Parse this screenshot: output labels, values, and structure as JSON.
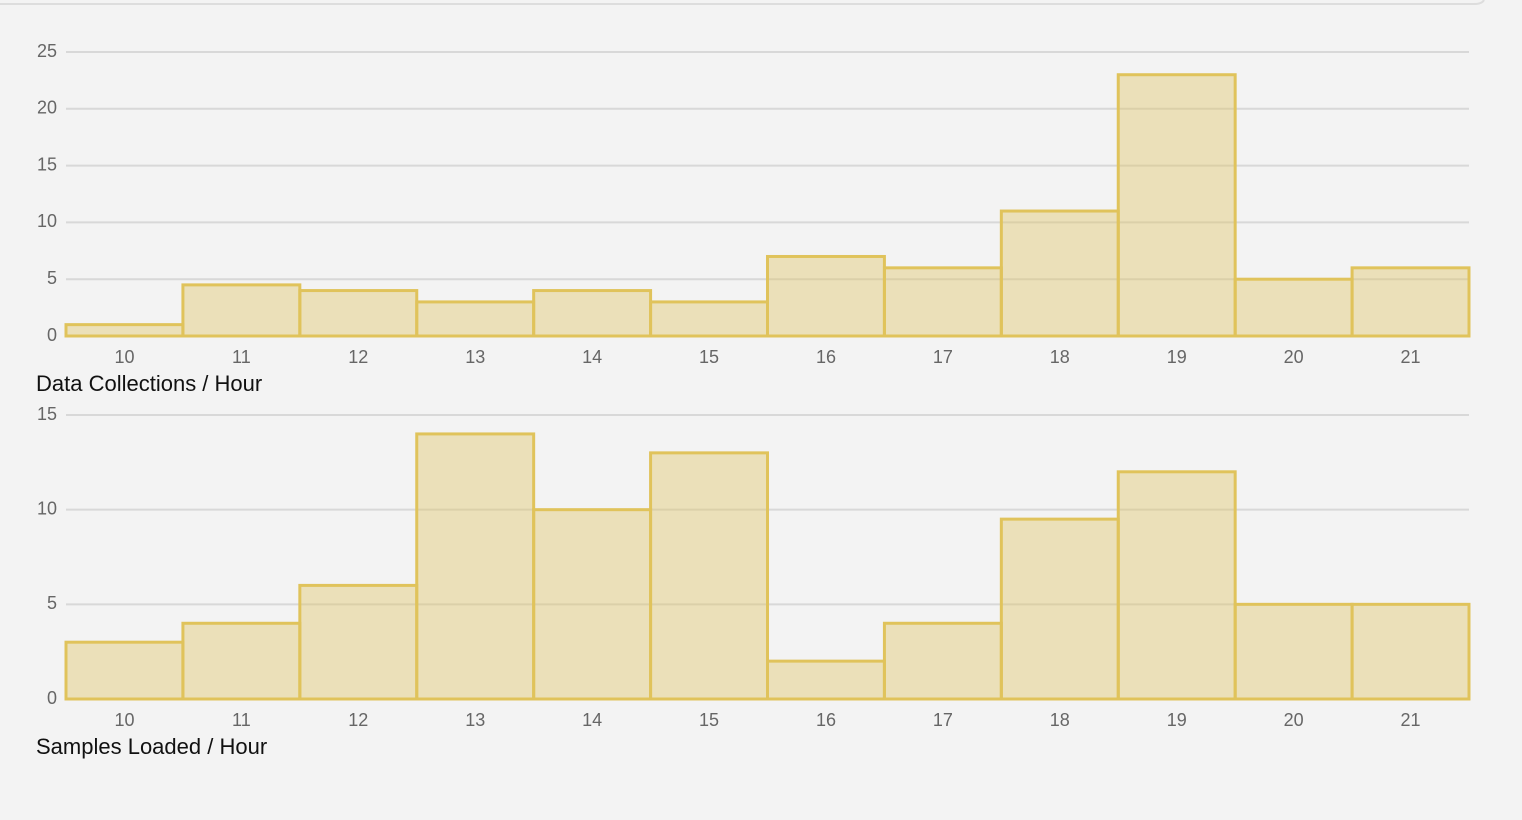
{
  "chart_data": [
    {
      "type": "bar",
      "title": "Data Collections / Hour",
      "categories": [
        "10",
        "11",
        "12",
        "13",
        "14",
        "15",
        "16",
        "17",
        "18",
        "19",
        "20",
        "21"
      ],
      "values": [
        1,
        4.5,
        4,
        3,
        4,
        3,
        7,
        6,
        11,
        23,
        5,
        6
      ],
      "color": "#e0c35b",
      "ylim": [
        0,
        25
      ],
      "yticks": [
        0,
        5,
        10,
        15,
        20,
        25
      ],
      "grid": true
    },
    {
      "type": "bar",
      "title": "Samples Loaded / Hour",
      "categories": [
        "10",
        "11",
        "12",
        "13",
        "14",
        "15",
        "16",
        "17",
        "18",
        "19",
        "20",
        "21"
      ],
      "values": [
        3,
        4,
        6,
        14,
        10,
        13,
        2,
        4,
        9.5,
        12,
        5,
        5
      ],
      "color": "#e0c35b",
      "ylim": [
        0,
        15
      ],
      "yticks": [
        0,
        5,
        10,
        15
      ],
      "grid": true
    }
  ]
}
